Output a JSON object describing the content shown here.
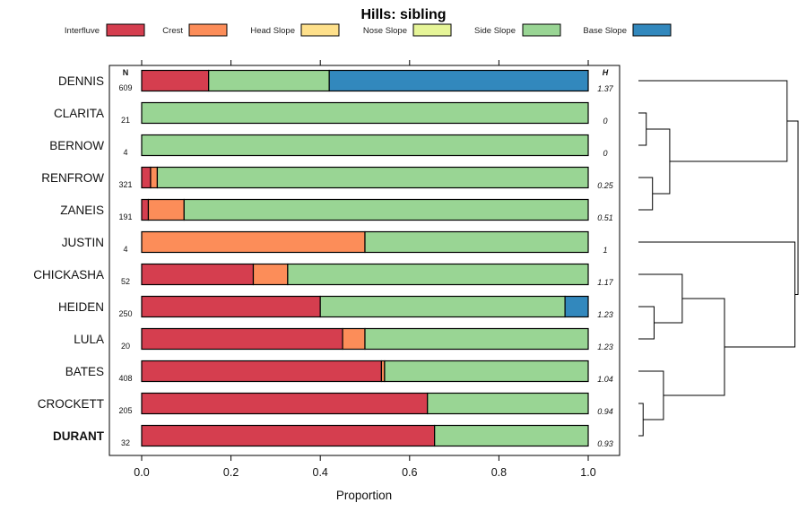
{
  "chart_data": {
    "type": "bar",
    "orientation": "horizontal",
    "stacked": true,
    "title": "Hills: sibling",
    "xlabel": "Proportion",
    "xlim": [
      0,
      1
    ],
    "x_ticks": [
      "0.0",
      "0.2",
      "0.4",
      "0.6",
      "0.8",
      "1.0"
    ],
    "n_header": "N",
    "h_header": "H",
    "legend": [
      {
        "name": "Interfluve",
        "color": "#D53E4F"
      },
      {
        "name": "Crest",
        "color": "#FC8D59"
      },
      {
        "name": "Head Slope",
        "color": "#FEE08B"
      },
      {
        "name": "Nose Slope",
        "color": "#E6F598"
      },
      {
        "name": "Side Slope",
        "color": "#99D594"
      },
      {
        "name": "Base Slope",
        "color": "#3288BD"
      }
    ],
    "rows": [
      {
        "label": "DENNIS",
        "n": "609",
        "h": "1.37",
        "bold": false,
        "values": [
          0.15,
          0,
          0,
          0,
          0.27,
          0.58
        ]
      },
      {
        "label": "CLARITA",
        "n": "21",
        "h": "0",
        "bold": false,
        "values": [
          0,
          0,
          0,
          0,
          1.0,
          0
        ]
      },
      {
        "label": "BERNOW",
        "n": "4",
        "h": "0",
        "bold": false,
        "values": [
          0,
          0,
          0,
          0,
          1.0,
          0
        ]
      },
      {
        "label": "RENFROW",
        "n": "321",
        "h": "0.25",
        "bold": false,
        "values": [
          0.02,
          0.015,
          0,
          0,
          0.965,
          0
        ]
      },
      {
        "label": "ZANEIS",
        "n": "191",
        "h": "0.51",
        "bold": false,
        "values": [
          0.015,
          0.08,
          0,
          0,
          0.905,
          0
        ]
      },
      {
        "label": "JUSTIN",
        "n": "4",
        "h": "1",
        "bold": false,
        "values": [
          0,
          0.5,
          0,
          0,
          0.5,
          0
        ]
      },
      {
        "label": "CHICKASHA",
        "n": "52",
        "h": "1.17",
        "bold": false,
        "values": [
          0.25,
          0.077,
          0,
          0,
          0.673,
          0
        ]
      },
      {
        "label": "HEIDEN",
        "n": "250",
        "h": "1.23",
        "bold": false,
        "values": [
          0.4,
          0,
          0,
          0,
          0.548,
          0.052
        ]
      },
      {
        "label": "LULA",
        "n": "20",
        "h": "1.23",
        "bold": false,
        "values": [
          0.45,
          0.05,
          0,
          0,
          0.5,
          0
        ]
      },
      {
        "label": "BATES",
        "n": "408",
        "h": "1.04",
        "bold": false,
        "values": [
          0.537,
          0.007,
          0,
          0,
          0.456,
          0
        ]
      },
      {
        "label": "CROCKETT",
        "n": "205",
        "h": "0.94",
        "bold": false,
        "values": [
          0.64,
          0,
          0,
          0,
          0.36,
          0
        ]
      },
      {
        "label": "DURANT",
        "n": "32",
        "h": "0.93",
        "bold": true,
        "values": [
          0.656,
          0,
          0,
          0,
          0.344,
          0
        ]
      }
    ],
    "dendrogram": {
      "note": "hierarchical clustering of rows; merge heights in relative dissimilarity units (0 = leaves)",
      "merges": [
        {
          "a": "CLARITA",
          "b": "BERNOW",
          "height": 0.05
        },
        {
          "a": "RENFROW",
          "b": "ZANEIS",
          "height": 0.09
        },
        {
          "a": "m0",
          "b": "m1",
          "height": 0.2
        },
        {
          "a": "DENNIS",
          "b": "m2",
          "height": 0.95
        },
        {
          "a": "HEIDEN",
          "b": "LULA",
          "height": 0.1
        },
        {
          "a": "CHICKASHA",
          "b": "m4",
          "height": 0.28
        },
        {
          "a": "CROCKETT",
          "b": "DURANT",
          "height": 0.03
        },
        {
          "a": "BATES",
          "b": "m6",
          "height": 0.16
        },
        {
          "a": "m5",
          "b": "m7",
          "height": 0.55
        },
        {
          "a": "JUSTIN",
          "b": "m8",
          "height": 1.0
        },
        {
          "a": "m3",
          "b": "m9",
          "height": 1.02
        }
      ]
    }
  }
}
